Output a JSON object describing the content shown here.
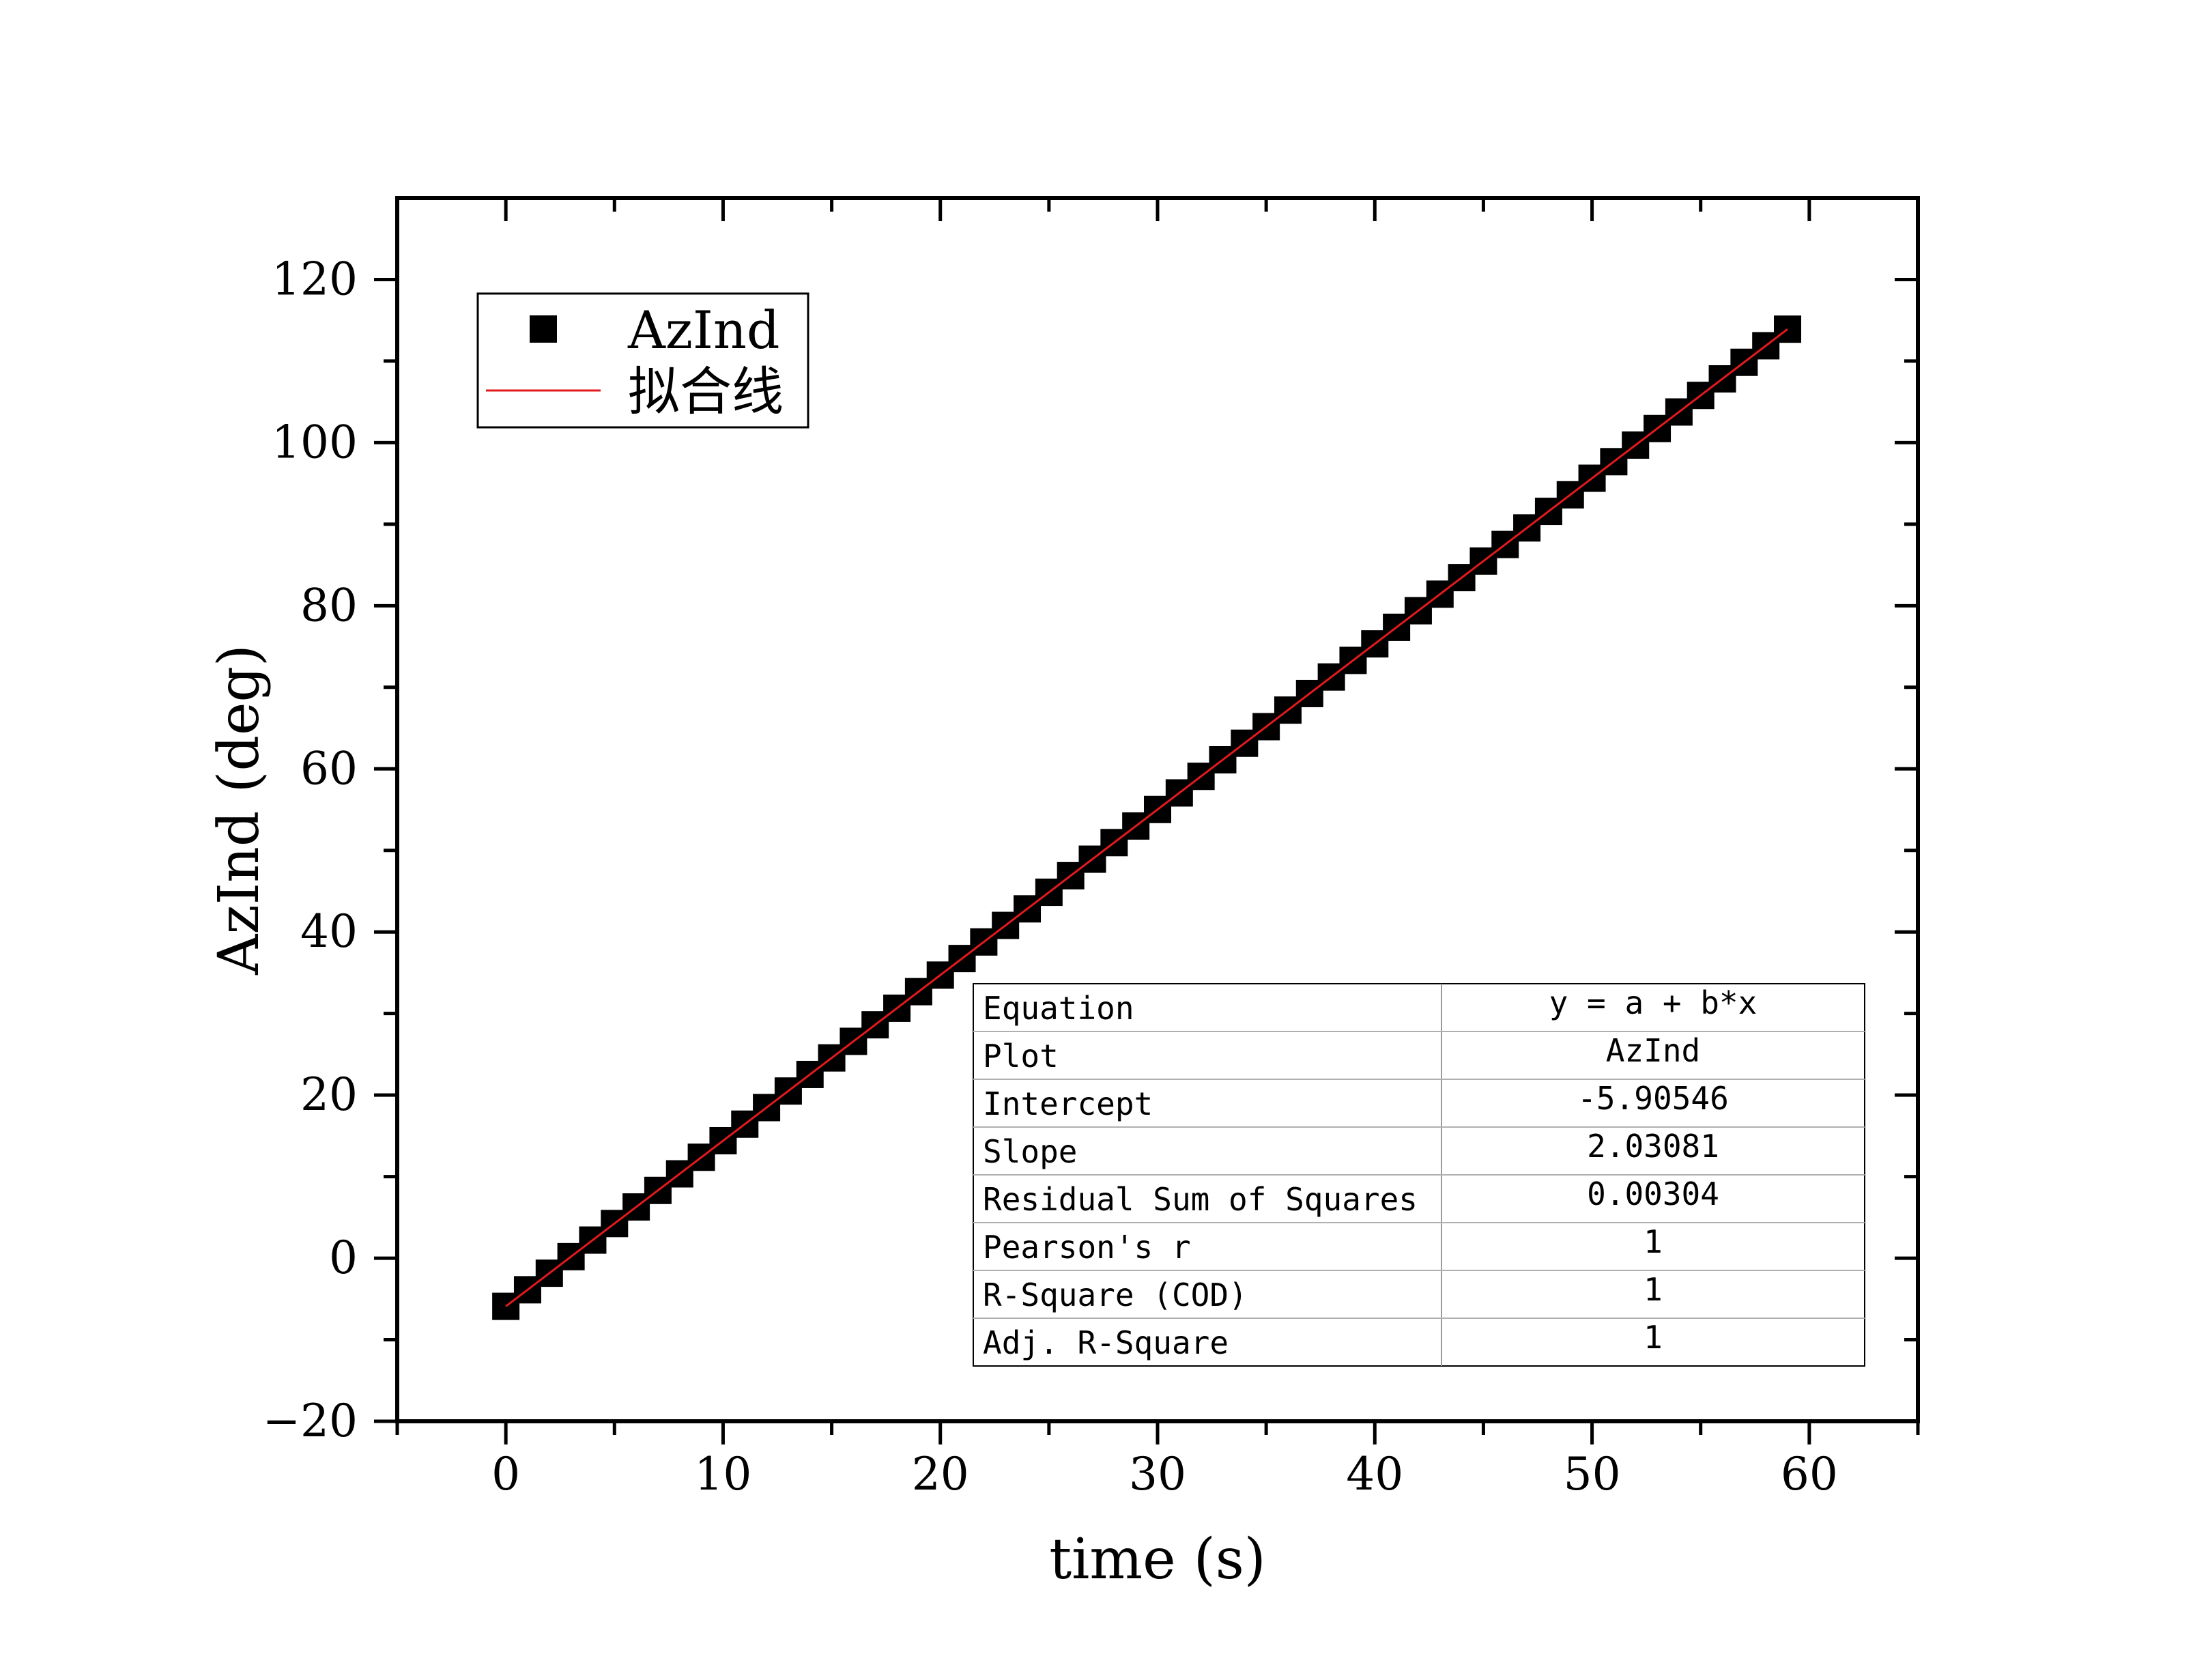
{
  "chart_data": {
    "type": "scatter",
    "xlabel": "time (s)",
    "ylabel": "AzInd (deg)",
    "xlim": [
      -5,
      65
    ],
    "ylim": [
      -20,
      130
    ],
    "x_ticks": [
      0,
      10,
      20,
      30,
      40,
      50,
      60
    ],
    "y_ticks": [
      -20,
      0,
      20,
      40,
      60,
      80,
      100,
      120
    ],
    "grid": false,
    "legend_position": "top-left",
    "series": [
      {
        "name": "AzInd",
        "kind": "scatter",
        "marker": "square",
        "color": "#000000",
        "x": [
          0,
          1,
          2,
          3,
          4,
          5,
          6,
          7,
          8,
          9,
          10,
          11,
          12,
          13,
          14,
          15,
          16,
          17,
          18,
          19,
          20,
          21,
          22,
          23,
          24,
          25,
          26,
          27,
          28,
          29,
          30,
          31,
          32,
          33,
          34,
          35,
          36,
          37,
          38,
          39,
          40,
          41,
          42,
          43,
          44,
          45,
          46,
          47,
          48,
          49,
          50,
          51,
          52,
          53,
          54,
          55,
          56,
          57,
          58,
          59
        ],
        "y": [
          -5.905,
          -3.875,
          -1.844,
          0.187,
          2.218,
          4.248,
          6.279,
          8.31,
          10.341,
          12.372,
          14.403,
          16.433,
          18.464,
          20.495,
          22.526,
          24.557,
          26.587,
          28.618,
          30.649,
          32.68,
          34.711,
          36.741,
          38.772,
          40.803,
          42.834,
          44.865,
          46.895,
          48.926,
          50.957,
          52.988,
          55.019,
          57.049,
          59.08,
          61.111,
          63.142,
          65.173,
          67.203,
          69.234,
          71.265,
          73.296,
          75.327,
          77.357,
          79.388,
          81.419,
          83.45,
          85.481,
          87.511,
          89.542,
          91.573,
          93.604,
          95.635,
          97.665,
          99.696,
          101.727,
          103.758,
          105.789,
          107.819,
          109.85,
          111.881,
          113.912
        ]
      },
      {
        "name": "拟合线",
        "kind": "line",
        "color": "#e31a1c",
        "intercept": -5.90546,
        "slope": 2.03081,
        "x_range": [
          0,
          59
        ]
      }
    ],
    "fit_table": {
      "rows": [
        {
          "label": "Equation",
          "value": "y = a + b*x"
        },
        {
          "label": "Plot",
          "value": "AzInd"
        },
        {
          "label": "Intercept",
          "value": "-5.90546"
        },
        {
          "label": "Slope",
          "value": "2.03081"
        },
        {
          "label": "Residual Sum of Squares",
          "value": "0.00304"
        },
        {
          "label": "Pearson's r",
          "value": "1"
        },
        {
          "label": "R-Square (COD)",
          "value": "1"
        },
        {
          "label": "Adj. R-Square",
          "value": "1"
        }
      ]
    }
  }
}
